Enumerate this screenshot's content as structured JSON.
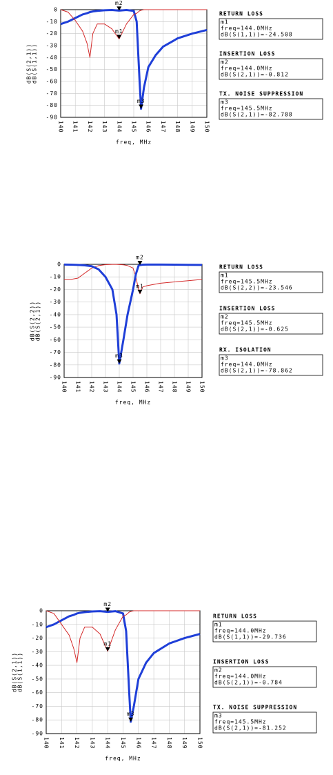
{
  "chart_data": [
    {
      "type": "line",
      "xlabel": "freq, MHz",
      "xlim": [
        140,
        150
      ],
      "xticks": [
        140,
        141,
        142,
        143,
        144,
        145,
        146,
        147,
        148,
        149,
        150
      ],
      "ylim": [
        -90,
        0
      ],
      "yticks": [
        0,
        -10,
        -20,
        -30,
        -40,
        -50,
        -60,
        -70,
        -80,
        -90
      ],
      "grid": true,
      "x": [
        140,
        140.5,
        141,
        141.5,
        141.8,
        142,
        142.2,
        142.5,
        143,
        143.5,
        144,
        144.5,
        145,
        145.2,
        145.4,
        145.5,
        145.7,
        146,
        146.5,
        147,
        148,
        149,
        150
      ],
      "series": [
        {
          "name": "dB(S(2,1))",
          "color": "#1f3fd8",
          "values": [
            -12,
            -10,
            -7,
            -4,
            -3,
            -2,
            -1.5,
            -1,
            -0.5,
            -0.3,
            -0.8,
            -0.3,
            -1,
            -10,
            -60,
            -82.8,
            -65,
            -48,
            -38,
            -31,
            -24,
            -20,
            -17
          ]
        },
        {
          "name": "dB(S(1,1))",
          "color": "#d42a2a",
          "values": [
            0,
            -2,
            -9,
            -18,
            -28,
            -40,
            -20,
            -12,
            -12,
            -16,
            -24.5,
            -12,
            -4,
            -3,
            -1,
            -0.5,
            0,
            0,
            0,
            0,
            0,
            0,
            0
          ]
        }
      ],
      "markers": [
        {
          "label": "m1",
          "x": 144,
          "y": -24.508
        },
        {
          "label": "m2",
          "x": 144,
          "y": -0.812
        },
        {
          "label": "m3",
          "x": 145.5,
          "y": -82.788
        }
      ],
      "readouts": [
        {
          "title": "RETURN LOSS",
          "lines": [
            "m1",
            "freq=144.0MHz",
            "dB(S(1,1))=-24.508"
          ]
        },
        {
          "title": "INSERTION LOSS",
          "lines": [
            "m2",
            "freq=144.0MHz",
            "dB(S(2,1))=-0.812"
          ]
        },
        {
          "title": "TX. NOISE SUPPRESSION",
          "lines": [
            "m3",
            "freq=145.5MHz",
            "dB(S(2,1))=-82.788"
          ]
        }
      ]
    },
    {
      "type": "line",
      "xlabel": "freq, MHz",
      "xlim": [
        140,
        150
      ],
      "xticks": [
        140,
        141,
        142,
        143,
        144,
        145,
        146,
        147,
        148,
        149,
        150
      ],
      "ylim": [
        -90,
        0
      ],
      "yticks": [
        0,
        -10,
        -20,
        -30,
        -40,
        -50,
        -60,
        -70,
        -80,
        -90
      ],
      "grid": true,
      "x": [
        140,
        140.5,
        141,
        141.5,
        142,
        142.5,
        143,
        143.5,
        143.8,
        144,
        144.3,
        144.6,
        145,
        145.2,
        145.4,
        145.5,
        145.7,
        146,
        146.5,
        147,
        148,
        149,
        150
      ],
      "series": [
        {
          "name": "dB(S(2,2))",
          "color": "#d42a2a",
          "values": [
            -12,
            -12,
            -11,
            -7,
            -3,
            -1,
            -0.3,
            -0.1,
            -0.1,
            -0.2,
            -0.4,
            -1,
            -3,
            -10,
            -20,
            -23.5,
            -18,
            -17,
            -16,
            -15,
            -14,
            -13,
            -12
          ]
        },
        {
          "name": "dB(S(2,1))",
          "color": "#1f3fd8",
          "values": [
            -0.2,
            -0.3,
            -0.5,
            -0.8,
            -1.5,
            -4,
            -10,
            -20,
            -40,
            -78.9,
            -60,
            -40,
            -20,
            -8,
            -1,
            -0.6,
            -0.3,
            -0.2,
            -0.2,
            -0.2,
            -0.3,
            -0.4,
            -0.5
          ]
        }
      ],
      "markers": [
        {
          "label": "m1",
          "x": 145.5,
          "y": -23.546
        },
        {
          "label": "m2",
          "x": 145.5,
          "y": -0.625
        },
        {
          "label": "m3",
          "x": 144,
          "y": -78.862
        }
      ],
      "readouts": [
        {
          "title": "RETURN LOSS",
          "lines": [
            "m1",
            "freq=145.5MHz",
            "dB(S(2,2))=-23.546"
          ]
        },
        {
          "title": "INSERTION LOSS",
          "lines": [
            "m2",
            "freq=145.5MHz",
            "dB(S(2,1))=-0.625"
          ]
        },
        {
          "title": "RX. ISOLATION",
          "lines": [
            "m3",
            "freq=144.0MHz",
            "dB(S(2,1))=-78.862"
          ]
        }
      ]
    },
    {
      "type": "line",
      "xlabel": "freq, MHz",
      "xlim": [
        140,
        150
      ],
      "xticks": [
        140,
        141,
        142,
        143,
        144,
        145,
        146,
        147,
        148,
        149,
        150
      ],
      "ylim": [
        -90,
        0
      ],
      "yticks": [
        0,
        -10,
        -20,
        -30,
        -40,
        -50,
        -60,
        -70,
        -80,
        -90
      ],
      "grid": true,
      "x": [
        140,
        140.5,
        141,
        141.5,
        141.8,
        142,
        142.2,
        142.5,
        143,
        143.5,
        144,
        144.5,
        145,
        145.2,
        145.4,
        145.5,
        145.7,
        146,
        146.5,
        147,
        148,
        149,
        150
      ],
      "series": [
        {
          "name": "dB(S(2,1))",
          "color": "#1f3fd8",
          "values": [
            -12,
            -10,
            -7,
            -4,
            -3,
            -2,
            -1.5,
            -1,
            -0.5,
            -0.3,
            -0.8,
            -0.3,
            -2,
            -15,
            -60,
            -81.3,
            -70,
            -50,
            -38,
            -31,
            -24,
            -20,
            -17
          ]
        },
        {
          "name": "dB(S(1,1))",
          "color": "#d42a2a",
          "values": [
            0,
            -2,
            -10,
            -18,
            -28,
            -38,
            -20,
            -12,
            -12,
            -17,
            -29.7,
            -14,
            -4,
            -3,
            -1,
            -0.5,
            0,
            0,
            0,
            0,
            0,
            0,
            0
          ]
        }
      ],
      "markers": [
        {
          "label": "m1",
          "x": 144,
          "y": -29.736
        },
        {
          "label": "m2",
          "x": 144,
          "y": -0.784
        },
        {
          "label": "m3",
          "x": 145.5,
          "y": -81.252
        }
      ],
      "readouts": [
        {
          "title": "RETURN LOSS",
          "lines": [
            "m1",
            "freq=144.0MHz",
            "dB(S(1,1))=-29.736"
          ]
        },
        {
          "title": "INSERTION LOSS",
          "lines": [
            "m2",
            "freq=144.0MHz",
            "dB(S(2,1))=-0.784"
          ]
        },
        {
          "title": "TX. NOISE SUPPRESSION",
          "lines": [
            "m3",
            "freq=145.5MHz",
            "dB(S(2,1))=-81.252"
          ]
        }
      ]
    }
  ]
}
